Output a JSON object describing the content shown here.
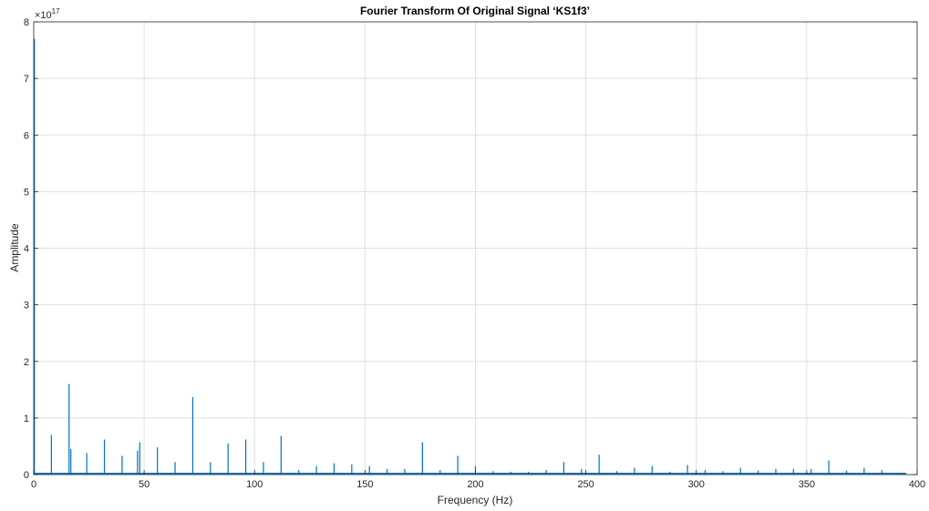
{
  "chart_data": {
    "type": "line",
    "title": "Fourier Transform Of Original Signal ‘KS1f3’",
    "xlabel": "Frequency (Hz)",
    "ylabel": "Amplitude",
    "y_exponent_base": "×10",
    "y_exponent_power": "17",
    "y_multiplier": 1e+17,
    "xlim": [
      0,
      400
    ],
    "ylim": [
      0,
      8
    ],
    "x_ticks": [
      0,
      50,
      100,
      150,
      200,
      250,
      300,
      350,
      400
    ],
    "y_ticks": [
      0,
      1,
      2,
      3,
      4,
      5,
      6,
      7,
      8
    ],
    "grid": true,
    "line_color": "#0072bd",
    "baseline_until": 395,
    "series": [
      {
        "peaks": [
          {
            "x": 0.3,
            "y": 7.7
          },
          {
            "x": 8,
            "y": 0.7
          },
          {
            "x": 16,
            "y": 1.6
          },
          {
            "x": 16.8,
            "y": 0.45
          },
          {
            "x": 24,
            "y": 0.38
          },
          {
            "x": 32,
            "y": 0.62
          },
          {
            "x": 40,
            "y": 0.33
          },
          {
            "x": 47,
            "y": 0.42
          },
          {
            "x": 48,
            "y": 0.57
          },
          {
            "x": 56,
            "y": 0.48
          },
          {
            "x": 64,
            "y": 0.22
          },
          {
            "x": 72,
            "y": 1.37
          },
          {
            "x": 80,
            "y": 0.22
          },
          {
            "x": 88,
            "y": 0.55
          },
          {
            "x": 96,
            "y": 0.62
          },
          {
            "x": 104,
            "y": 0.22
          },
          {
            "x": 112,
            "y": 0.68
          },
          {
            "x": 120,
            "y": 0.08
          },
          {
            "x": 128,
            "y": 0.15
          },
          {
            "x": 136,
            "y": 0.2
          },
          {
            "x": 144,
            "y": 0.18
          },
          {
            "x": 152,
            "y": 0.15
          },
          {
            "x": 160,
            "y": 0.1
          },
          {
            "x": 168,
            "y": 0.1
          },
          {
            "x": 176,
            "y": 0.57
          },
          {
            "x": 184,
            "y": 0.08
          },
          {
            "x": 192,
            "y": 0.33
          },
          {
            "x": 200,
            "y": 0.15
          },
          {
            "x": 208,
            "y": 0.06
          },
          {
            "x": 216,
            "y": 0.05
          },
          {
            "x": 224,
            "y": 0.05
          },
          {
            "x": 232,
            "y": 0.08
          },
          {
            "x": 240,
            "y": 0.22
          },
          {
            "x": 248,
            "y": 0.1
          },
          {
            "x": 256,
            "y": 0.35
          },
          {
            "x": 264,
            "y": 0.06
          },
          {
            "x": 272,
            "y": 0.12
          },
          {
            "x": 280,
            "y": 0.15
          },
          {
            "x": 288,
            "y": 0.05
          },
          {
            "x": 296,
            "y": 0.17
          },
          {
            "x": 304,
            "y": 0.08
          },
          {
            "x": 312,
            "y": 0.06
          },
          {
            "x": 320,
            "y": 0.12
          },
          {
            "x": 328,
            "y": 0.07
          },
          {
            "x": 336,
            "y": 0.1
          },
          {
            "x": 344,
            "y": 0.1
          },
          {
            "x": 352,
            "y": 0.1
          },
          {
            "x": 360,
            "y": 0.25
          },
          {
            "x": 368,
            "y": 0.07
          },
          {
            "x": 376,
            "y": 0.12
          },
          {
            "x": 384,
            "y": 0.08
          },
          {
            "x": 392,
            "y": 0.03
          }
        ]
      }
    ]
  }
}
